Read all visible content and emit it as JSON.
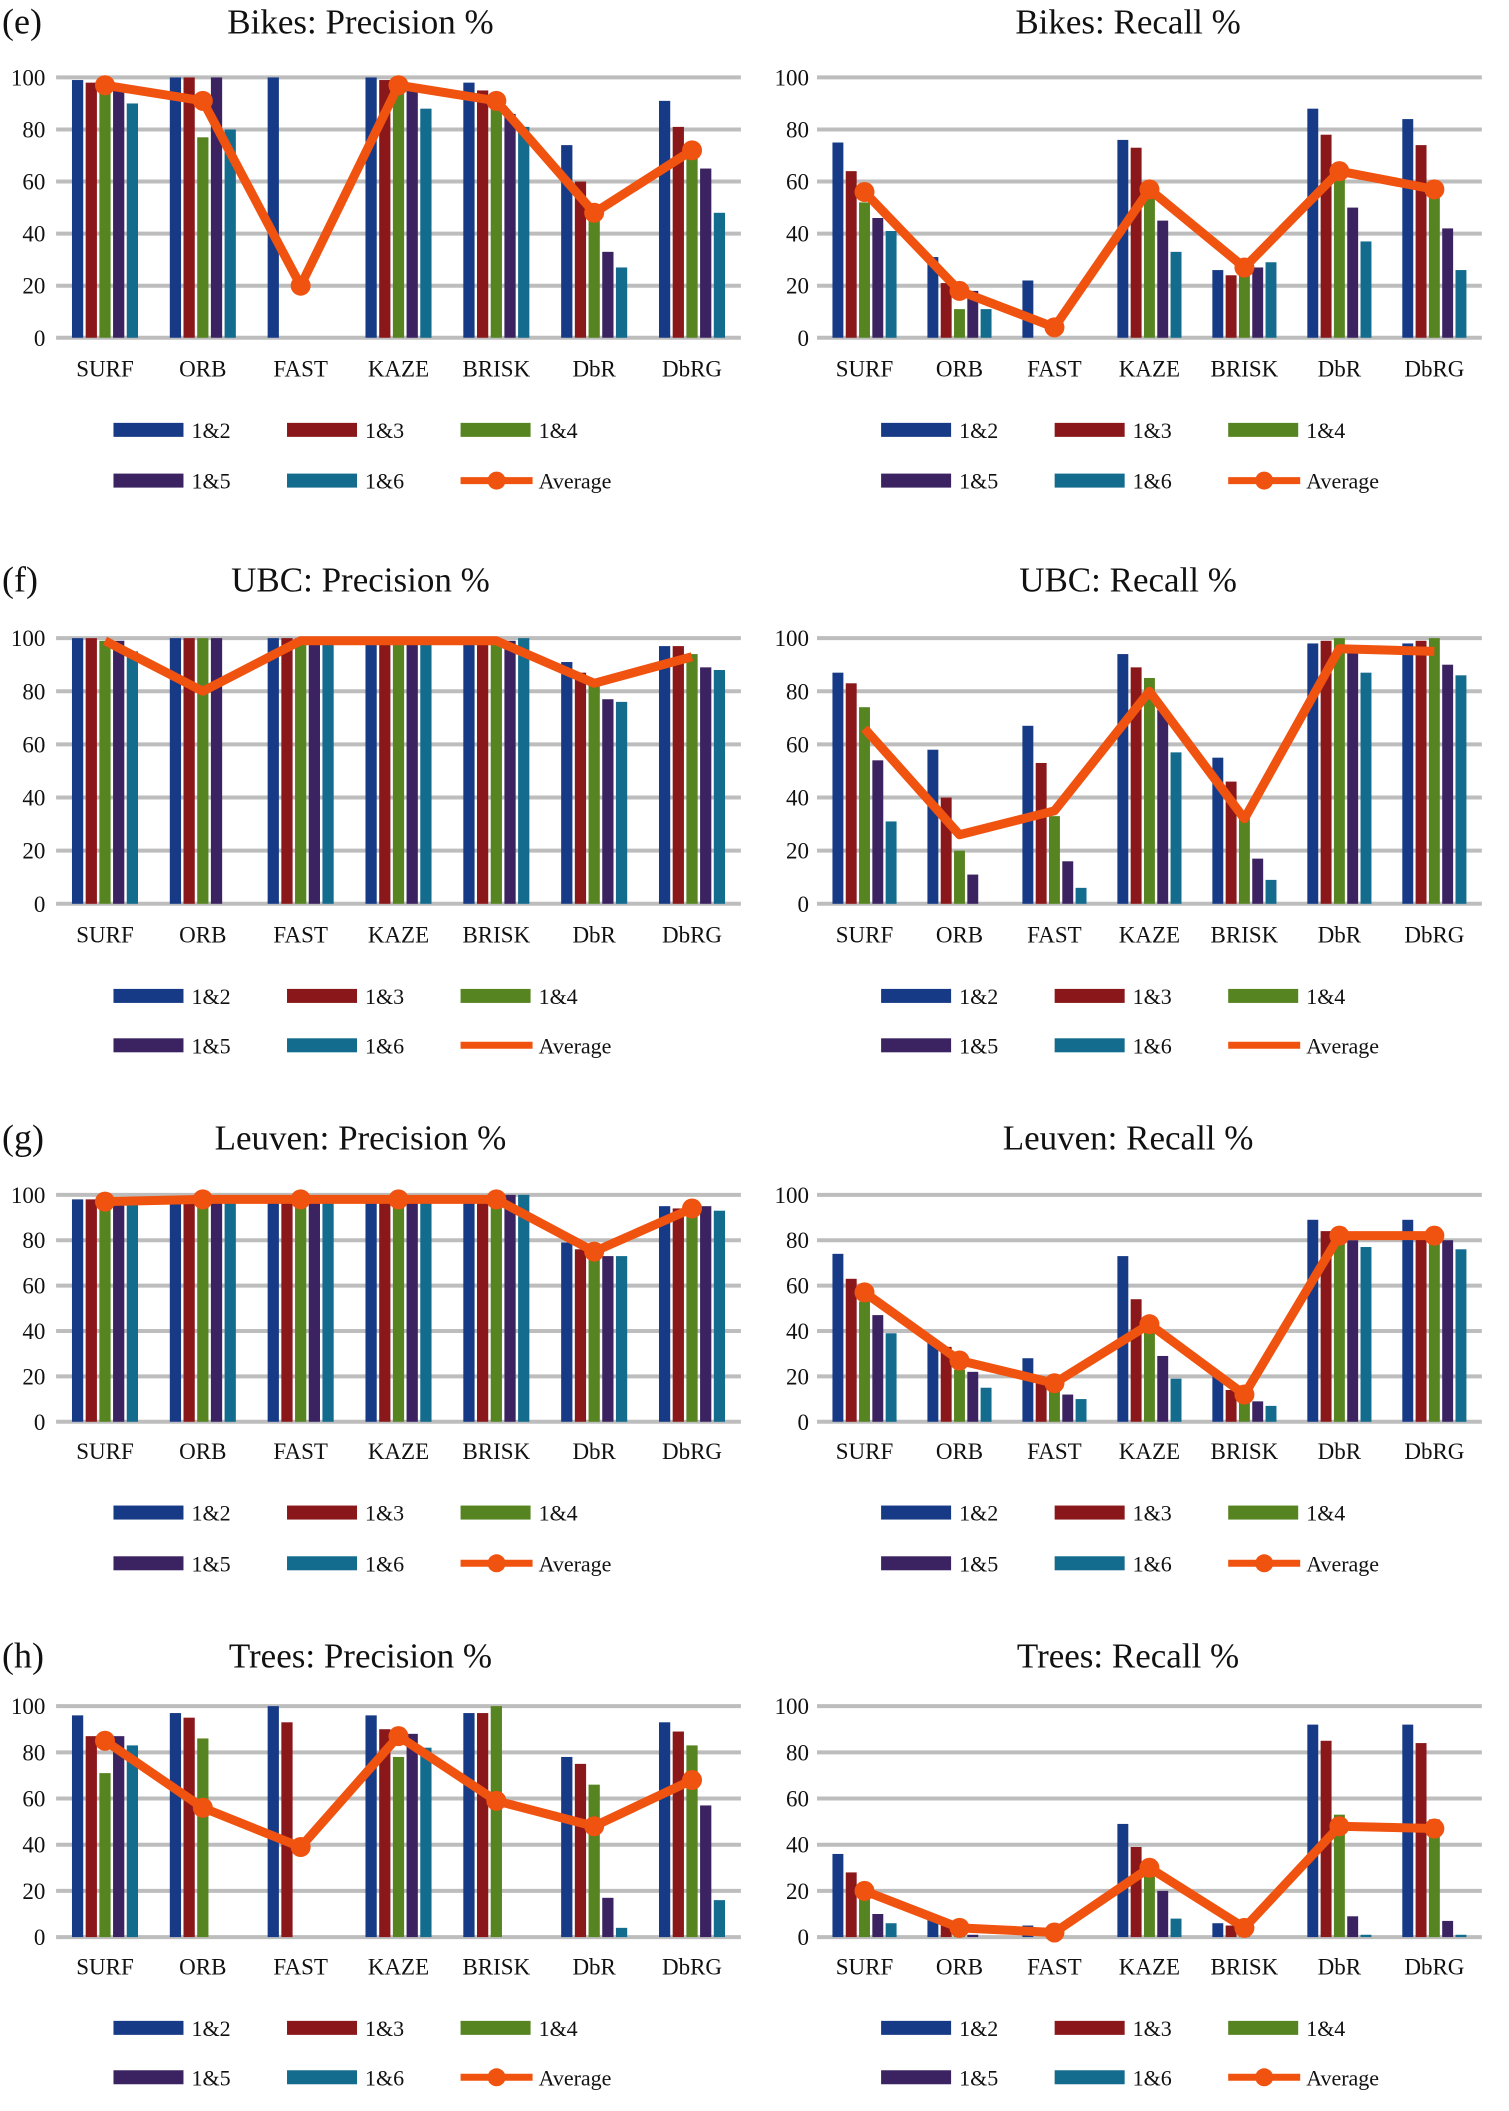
{
  "colors": {
    "1&2": "#173a86",
    "1&3": "#8a1719",
    "1&4": "#568420",
    "1&5": "#3a2360",
    "1&6": "#136b8e",
    "Average": "#f0520f",
    "grid": "#bdbdbd"
  },
  "chart_data": [
    {
      "type": "bar+line",
      "panel_label": "(e)",
      "title": "Bikes: Precision %",
      "categories": [
        "SURF",
        "ORB",
        "FAST",
        "KAZE",
        "BRISK",
        "DbR",
        "DbRG"
      ],
      "ylim": [
        0,
        100
      ],
      "yticks": [
        "0",
        "20",
        "40",
        "60",
        "80",
        "100"
      ],
      "grid": true,
      "legend_position": "bottom",
      "average_markers": true,
      "series": [
        {
          "name": "1&2",
          "values": [
            99,
            100,
            100,
            100,
            98,
            74,
            91
          ]
        },
        {
          "name": "1&3",
          "values": [
            98,
            100,
            0,
            99,
            95,
            60,
            81
          ]
        },
        {
          "name": "1&4",
          "values": [
            95,
            77,
            0,
            95,
            90,
            45,
            70
          ]
        },
        {
          "name": "1&5",
          "values": [
            95,
            100,
            0,
            95,
            86,
            33,
            65
          ]
        },
        {
          "name": "1&6",
          "values": [
            90,
            80,
            0,
            88,
            81,
            27,
            48
          ]
        },
        {
          "name": "Average",
          "values": [
            97,
            91,
            20,
            97,
            91,
            48,
            72
          ]
        }
      ]
    },
    {
      "type": "bar+line",
      "panel_label": "",
      "title": "Bikes: Recall %",
      "categories": [
        "SURF",
        "ORB",
        "FAST",
        "KAZE",
        "BRISK",
        "DbR",
        "DbRG"
      ],
      "ylim": [
        0,
        100
      ],
      "yticks": [
        "0",
        "20",
        "40",
        "60",
        "80",
        "100"
      ],
      "grid": true,
      "legend_position": "bottom",
      "average_markers": true,
      "series": [
        {
          "name": "1&2",
          "values": [
            75,
            31,
            22,
            76,
            26,
            88,
            84
          ]
        },
        {
          "name": "1&3",
          "values": [
            64,
            21,
            0,
            73,
            24,
            78,
            74
          ]
        },
        {
          "name": "1&4",
          "values": [
            52,
            11,
            0,
            55,
            27,
            62,
            57
          ]
        },
        {
          "name": "1&5",
          "values": [
            46,
            18,
            0,
            45,
            27,
            50,
            42
          ]
        },
        {
          "name": "1&6",
          "values": [
            41,
            11,
            0,
            33,
            29,
            37,
            26
          ]
        },
        {
          "name": "Average",
          "values": [
            56,
            18,
            4,
            57,
            27,
            64,
            57
          ]
        }
      ]
    },
    {
      "type": "bar+line",
      "panel_label": "(f)",
      "title": "UBC: Precision %",
      "categories": [
        "SURF",
        "ORB",
        "FAST",
        "KAZE",
        "BRISK",
        "DbR",
        "DbRG"
      ],
      "ylim": [
        0,
        100
      ],
      "yticks": [
        "0",
        "20",
        "40",
        "60",
        "80",
        "100"
      ],
      "grid": true,
      "legend_position": "bottom",
      "average_markers": false,
      "series": [
        {
          "name": "1&2",
          "values": [
            100,
            100,
            100,
            99,
            99,
            91,
            97
          ]
        },
        {
          "name": "1&3",
          "values": [
            100,
            100,
            100,
            99,
            99,
            87,
            97
          ]
        },
        {
          "name": "1&4",
          "values": [
            99,
            100,
            100,
            99,
            99,
            83,
            94
          ]
        },
        {
          "name": "1&5",
          "values": [
            99,
            100,
            99,
            99,
            99,
            77,
            89
          ]
        },
        {
          "name": "1&6",
          "values": [
            95,
            0,
            99,
            99,
            100,
            76,
            88
          ]
        },
        {
          "name": "Average",
          "values": [
            99,
            80,
            99,
            99,
            99,
            83,
            93
          ]
        }
      ]
    },
    {
      "type": "bar+line",
      "panel_label": "",
      "title": "UBC: Recall %",
      "categories": [
        "SURF",
        "ORB",
        "FAST",
        "KAZE",
        "BRISK",
        "DbR",
        "DbRG"
      ],
      "ylim": [
        0,
        100
      ],
      "yticks": [
        "0",
        "20",
        "40",
        "60",
        "80",
        "100"
      ],
      "grid": true,
      "legend_position": "bottom",
      "average_markers": false,
      "series": [
        {
          "name": "1&2",
          "values": [
            87,
            58,
            67,
            94,
            55,
            98,
            98
          ]
        },
        {
          "name": "1&3",
          "values": [
            83,
            40,
            53,
            89,
            46,
            99,
            99
          ]
        },
        {
          "name": "1&4",
          "values": [
            74,
            20,
            33,
            85,
            33,
            100,
            100
          ]
        },
        {
          "name": "1&5",
          "values": [
            54,
            11,
            16,
            73,
            17,
            96,
            90
          ]
        },
        {
          "name": "1&6",
          "values": [
            31,
            0,
            6,
            57,
            9,
            87,
            86
          ]
        },
        {
          "name": "Average",
          "values": [
            66,
            26,
            35,
            80,
            32,
            96,
            95
          ]
        }
      ]
    },
    {
      "type": "bar+line",
      "panel_label": "(g)",
      "title": "Leuven: Precision %",
      "categories": [
        "SURF",
        "ORB",
        "FAST",
        "KAZE",
        "BRISK",
        "DbR",
        "DbRG"
      ],
      "ylim": [
        0,
        100
      ],
      "yticks": [
        "0",
        "20",
        "40",
        "60",
        "80",
        "100"
      ],
      "grid": true,
      "legend_position": "bottom",
      "average_markers": true,
      "series": [
        {
          "name": "1&2",
          "values": [
            98,
            97,
            98,
            98,
            97,
            79,
            95
          ]
        },
        {
          "name": "1&3",
          "values": [
            98,
            97,
            98,
            98,
            97,
            76,
            94
          ]
        },
        {
          "name": "1&4",
          "values": [
            96,
            97,
            98,
            98,
            97,
            73,
            93
          ]
        },
        {
          "name": "1&5",
          "values": [
            96,
            98,
            98,
            98,
            100,
            73,
            95
          ]
        },
        {
          "name": "1&6",
          "values": [
            97,
            98,
            98,
            98,
            100,
            73,
            93
          ]
        },
        {
          "name": "Average",
          "values": [
            97,
            98,
            98,
            98,
            98,
            75,
            94
          ]
        }
      ]
    },
    {
      "type": "bar+line",
      "panel_label": "",
      "title": "Leuven: Recall %",
      "categories": [
        "SURF",
        "ORB",
        "FAST",
        "KAZE",
        "BRISK",
        "DbR",
        "DbRG"
      ],
      "ylim": [
        0,
        100
      ],
      "yticks": [
        "0",
        "20",
        "40",
        "60",
        "80",
        "100"
      ],
      "grid": true,
      "legend_position": "bottom",
      "average_markers": true,
      "series": [
        {
          "name": "1&2",
          "values": [
            74,
            35,
            28,
            73,
            20,
            89,
            89
          ]
        },
        {
          "name": "1&3",
          "values": [
            63,
            33,
            17,
            54,
            14,
            84,
            82
          ]
        },
        {
          "name": "1&4",
          "values": [
            53,
            23,
            15,
            40,
            10,
            80,
            80
          ]
        },
        {
          "name": "1&5",
          "values": [
            47,
            22,
            12,
            29,
            9,
            80,
            80
          ]
        },
        {
          "name": "1&6",
          "values": [
            39,
            15,
            10,
            19,
            7,
            77,
            76
          ]
        },
        {
          "name": "Average",
          "values": [
            57,
            27,
            17,
            43,
            12,
            82,
            82
          ]
        }
      ]
    },
    {
      "type": "bar+line",
      "panel_label": "(h)",
      "title": "Trees: Precision %",
      "categories": [
        "SURF",
        "ORB",
        "FAST",
        "KAZE",
        "BRISK",
        "DbR",
        "DbRG"
      ],
      "ylim": [
        0,
        100
      ],
      "yticks": [
        "0",
        "20",
        "40",
        "60",
        "80",
        "100"
      ],
      "grid": true,
      "legend_position": "bottom",
      "average_markers": true,
      "series": [
        {
          "name": "1&2",
          "values": [
            96,
            97,
            100,
            96,
            97,
            78,
            93
          ]
        },
        {
          "name": "1&3",
          "values": [
            87,
            95,
            93,
            90,
            97,
            75,
            89
          ]
        },
        {
          "name": "1&4",
          "values": [
            71,
            86,
            0,
            78,
            100,
            66,
            83
          ]
        },
        {
          "name": "1&5",
          "values": [
            87,
            0,
            0,
            88,
            0,
            17,
            57
          ]
        },
        {
          "name": "1&6",
          "values": [
            83,
            0,
            0,
            82,
            0,
            4,
            16
          ]
        },
        {
          "name": "Average",
          "values": [
            85,
            56,
            39,
            87,
            59,
            48,
            68
          ]
        }
      ]
    },
    {
      "type": "bar+line",
      "panel_label": "",
      "title": "Trees: Recall %",
      "categories": [
        "SURF",
        "ORB",
        "FAST",
        "KAZE",
        "BRISK",
        "DbR",
        "DbRG"
      ],
      "ylim": [
        0,
        100
      ],
      "yticks": [
        "0",
        "20",
        "40",
        "60",
        "80",
        "100"
      ],
      "grid": true,
      "legend_position": "bottom",
      "average_markers": true,
      "series": [
        {
          "name": "1&2",
          "values": [
            36,
            8,
            5,
            49,
            6,
            92,
            92
          ]
        },
        {
          "name": "1&3",
          "values": [
            28,
            5,
            0,
            39,
            5,
            85,
            84
          ]
        },
        {
          "name": "1&4",
          "values": [
            17,
            3,
            0,
            28,
            3,
            53,
            51
          ]
        },
        {
          "name": "1&5",
          "values": [
            10,
            1,
            0,
            20,
            0,
            9,
            7
          ]
        },
        {
          "name": "1&6",
          "values": [
            6,
            0,
            0,
            8,
            0,
            1,
            1
          ]
        },
        {
          "name": "Average",
          "values": [
            20,
            4,
            2,
            30,
            4,
            48,
            47
          ]
        }
      ]
    }
  ]
}
